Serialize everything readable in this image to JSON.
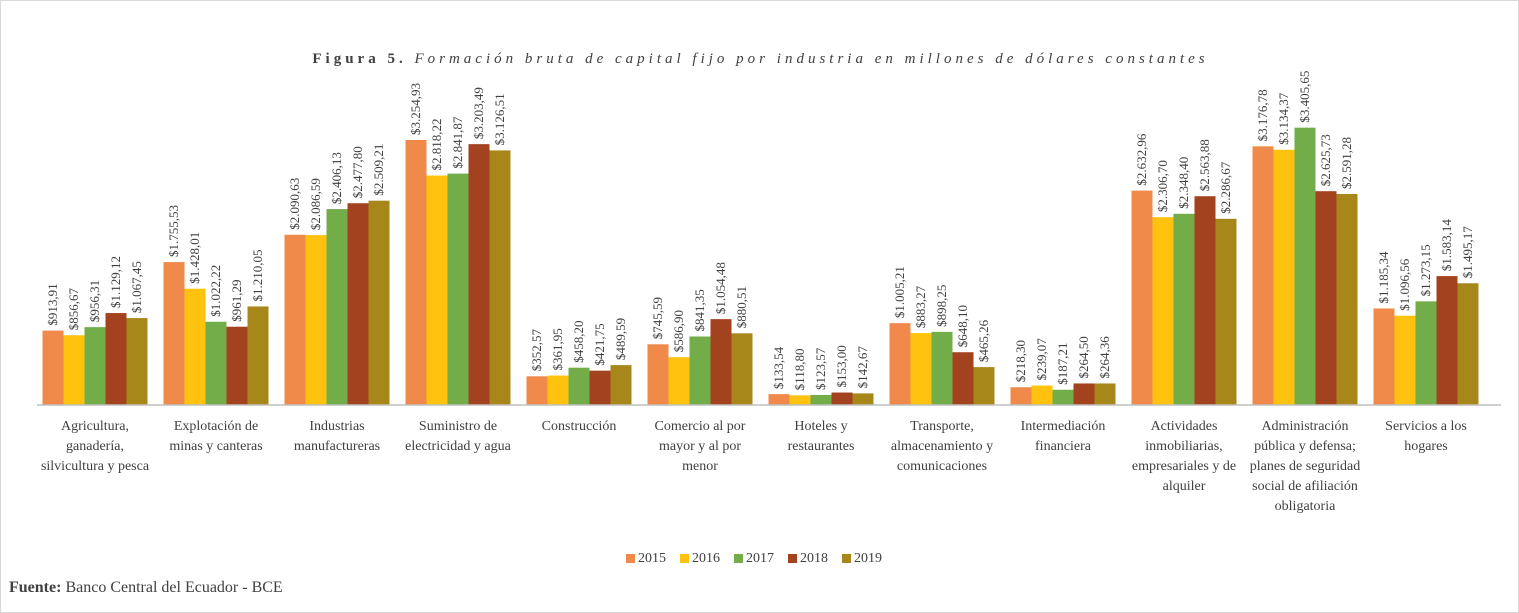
{
  "chart_data": {
    "type": "bar",
    "figure_label": "Figura 5.",
    "title": "Formación bruta de capital fijo por industria en millones de dólares constantes",
    "categories": [
      "Agricultura, ganadería, silvicultura y pesca",
      "Explotación de minas y canteras",
      "Industrias manufactureras",
      "Suministro de electricidad y agua",
      "Construcción",
      "Comercio al por mayor y al por menor",
      "Hoteles y restaurantes",
      "Transporte, almacenamiento y comunicaciones",
      "Intermediación financiera",
      "Actividades inmobiliarias, empresariales y de alquiler",
      "Administración pública y defensa; planes de seguridad social de afiliación obligatoria",
      "Servicios a los hogares"
    ],
    "series": [
      {
        "name": "2015",
        "color": "#f08a4b",
        "values": [
          913.91,
          1755.53,
          2090.63,
          3254.93,
          352.57,
          745.59,
          133.54,
          1005.21,
          218.3,
          2632.96,
          3176.78,
          1185.34
        ],
        "value_labels": [
          "$913,91",
          "$1.755,53",
          "$2.090,63",
          "$3.254,93",
          "$352,57",
          "$745,59",
          "$133,54",
          "$1.005,21",
          "$218,30",
          "$2.632,96",
          "$3.176,78",
          "$1.185,34"
        ]
      },
      {
        "name": "2016",
        "color": "#ffc30f",
        "values": [
          856.67,
          1428.01,
          2086.59,
          2818.22,
          361.95,
          586.9,
          118.8,
          883.27,
          239.07,
          2306.7,
          3134.37,
          1096.56
        ],
        "value_labels": [
          "$856,67",
          "$1.428,01",
          "$2.086,59",
          "$2.818,22",
          "$361,95",
          "$586,90",
          "$118,80",
          "$883,27",
          "$239,07",
          "$2.306,70",
          "$3.134,37",
          "$1.096,56"
        ]
      },
      {
        "name": "2017",
        "color": "#72ad4a",
        "values": [
          956.31,
          1022.22,
          2406.13,
          2841.87,
          458.2,
          841.35,
          123.57,
          898.25,
          187.21,
          2348.4,
          3405.65,
          1273.15
        ],
        "value_labels": [
          "$956,31",
          "$1.022,22",
          "$2.406,13",
          "$2.841,87",
          "$458,20",
          "$841,35",
          "$123,57",
          "$898,25",
          "$187,21",
          "$2.348,40",
          "$3.405,65",
          "$1.273,15"
        ]
      },
      {
        "name": "2018",
        "color": "#a3421f",
        "values": [
          1129.12,
          961.29,
          2477.8,
          3203.49,
          421.75,
          1054.48,
          153.0,
          648.1,
          264.5,
          2563.88,
          2625.73,
          1583.14
        ],
        "value_labels": [
          "$1.129,12",
          "$961,29",
          "$2.477,80",
          "$3.203,49",
          "$421,75",
          "$1.054,48",
          "$153,00",
          "$648,10",
          "$264,50",
          "$2.563,88",
          "$2.625,73",
          "$1.583,14"
        ]
      },
      {
        "name": "2019",
        "color": "#a8871a",
        "values": [
          1067.45,
          1210.05,
          2509.21,
          3126.51,
          489.59,
          880.51,
          142.67,
          465.26,
          264.36,
          2286.67,
          2591.28,
          1495.17
        ],
        "value_labels": [
          "$1.067,45",
          "$1.210,05",
          "$2.509,21",
          "$3.126,51",
          "$489,59",
          "$880,51",
          "$142,67",
          "$465,26",
          "$264,36",
          "$2.286,67",
          "$2.591,28",
          "$1.495,17"
        ]
      }
    ],
    "ylim": [
      0,
      3500
    ],
    "grid": false,
    "legend": "bottom",
    "source": {
      "label": "Fuente:",
      "text": "Banco Central del Ecuador - BCE"
    }
  }
}
